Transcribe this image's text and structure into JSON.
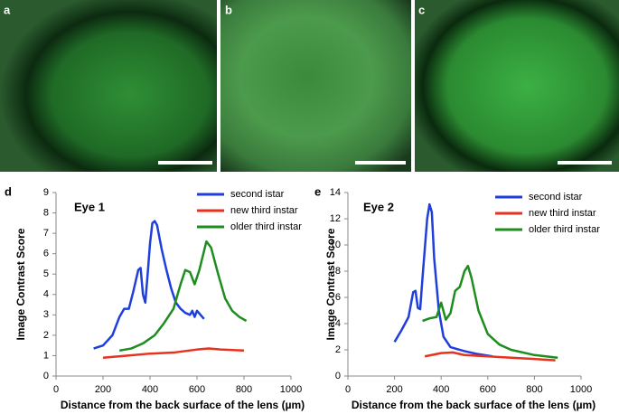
{
  "images": [
    {
      "label": "a"
    },
    {
      "label": "b"
    },
    {
      "label": "c"
    }
  ],
  "chart_data": [
    {
      "type": "line",
      "panel_label": "d",
      "title": "Eye 1",
      "x_label": "Distance from the back surface of the lens (µm)",
      "y_label": "Image Contrast Score",
      "xlim": [
        0,
        1000
      ],
      "xticks": [
        0,
        200,
        400,
        600,
        800,
        1000
      ],
      "ylim": [
        0,
        9
      ],
      "yticks": [
        0,
        1,
        2,
        3,
        4,
        5,
        6,
        7,
        8,
        9
      ],
      "series": [
        {
          "name": "second istar",
          "color": "#1f3fdc",
          "x": [
            160,
            200,
            240,
            270,
            290,
            310,
            330,
            350,
            360,
            370,
            380,
            390,
            400,
            410,
            420,
            430,
            450,
            470,
            490,
            510,
            530,
            550,
            570,
            580,
            590,
            600,
            630
          ],
          "values": [
            1.35,
            1.5,
            2.0,
            2.9,
            3.3,
            3.3,
            4.2,
            5.2,
            5.3,
            4.0,
            3.6,
            5.0,
            6.5,
            7.5,
            7.6,
            7.4,
            6.2,
            5.2,
            4.3,
            3.6,
            3.3,
            3.1,
            3.0,
            3.2,
            2.9,
            3.2,
            2.8
          ]
        },
        {
          "name": "new third instar",
          "color": "#e8321e",
          "x": [
            200,
            300,
            400,
            500,
            600,
            650,
            700,
            800
          ],
          "values": [
            0.9,
            1.0,
            1.1,
            1.15,
            1.3,
            1.35,
            1.3,
            1.25
          ]
        },
        {
          "name": "older third instar",
          "color": "#1e8c1e",
          "x": [
            270,
            320,
            370,
            420,
            460,
            500,
            530,
            550,
            570,
            590,
            610,
            640,
            660,
            690,
            720,
            750,
            780,
            810
          ],
          "values": [
            1.25,
            1.35,
            1.6,
            2.0,
            2.6,
            3.3,
            4.5,
            5.2,
            5.1,
            4.5,
            5.2,
            6.6,
            6.3,
            5.0,
            3.8,
            3.2,
            2.9,
            2.7
          ]
        }
      ]
    },
    {
      "type": "line",
      "panel_label": "e",
      "title": "Eye 2",
      "x_label": "Distance from the back surface of the lens (µm)",
      "y_label": "Image Contrast Score",
      "xlim": [
        0,
        1000
      ],
      "xticks": [
        0,
        200,
        400,
        600,
        800,
        1000
      ],
      "ylim": [
        0,
        14
      ],
      "yticks": [
        0,
        2,
        4,
        6,
        8,
        10,
        12,
        14
      ],
      "series": [
        {
          "name": "second istar",
          "color": "#1f3fdc",
          "x": [
            200,
            230,
            260,
            280,
            290,
            300,
            310,
            320,
            340,
            350,
            360,
            370,
            390,
            410,
            440,
            500,
            550,
            620
          ],
          "values": [
            2.6,
            3.5,
            4.5,
            6.4,
            6.5,
            5.2,
            5.1,
            7.5,
            12.0,
            13.1,
            12.5,
            9.0,
            5.0,
            3.0,
            2.2,
            1.9,
            1.7,
            1.5
          ]
        },
        {
          "name": "new third instar",
          "color": "#e8321e",
          "x": [
            330,
            400,
            450,
            500,
            600,
            700,
            800,
            890
          ],
          "values": [
            1.5,
            1.75,
            1.8,
            1.6,
            1.5,
            1.4,
            1.3,
            1.2
          ]
        },
        {
          "name": "older third instar",
          "color": "#1e8c1e",
          "x": [
            320,
            350,
            380,
            400,
            420,
            440,
            460,
            480,
            500,
            515,
            530,
            560,
            600,
            650,
            700,
            800,
            900
          ],
          "values": [
            4.2,
            4.4,
            4.5,
            5.6,
            4.3,
            4.8,
            6.5,
            6.8,
            8.0,
            8.4,
            7.5,
            5.0,
            3.2,
            2.4,
            2.0,
            1.6,
            1.4
          ]
        }
      ]
    }
  ]
}
